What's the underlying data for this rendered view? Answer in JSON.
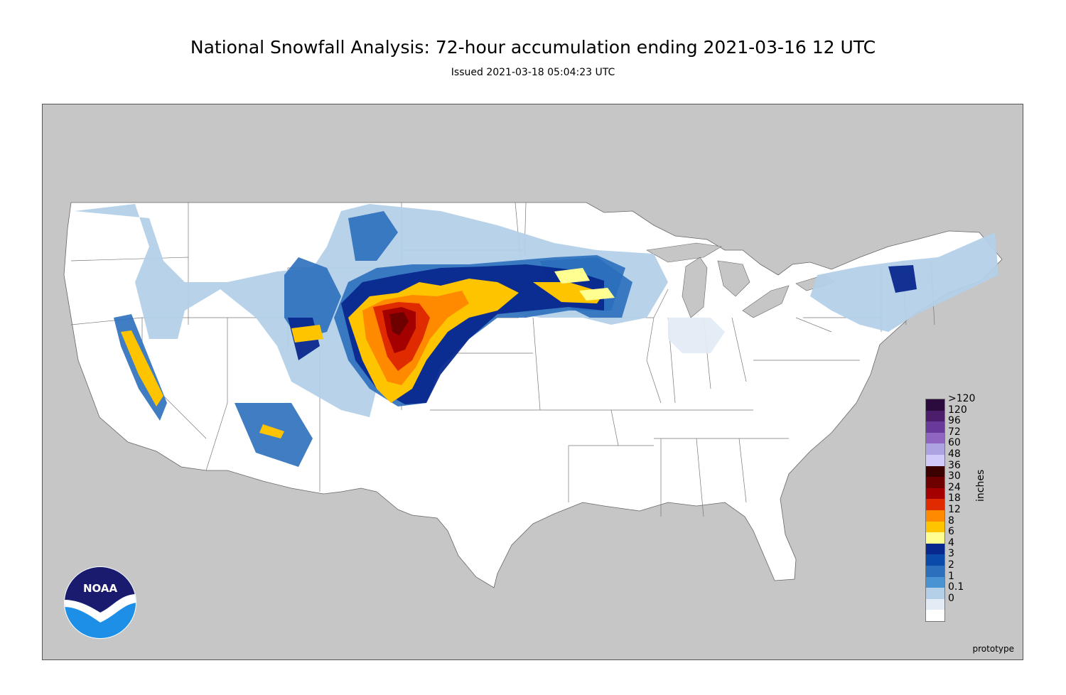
{
  "title": "National Snowfall Analysis: 72-hour accumulation ending 2021-03-16 12 UTC",
  "subtitle": "Issued 2021-03-18 05:04:23 UTC",
  "map": {
    "region": "Contiguous United States",
    "ocean_land_outside_color": "#c6c6c6",
    "us_land_color": "#ffffff",
    "border_color": "#555555",
    "watermark": "prototype"
  },
  "legend": {
    "unit": "inches",
    "bins": [
      {
        "label": ">120",
        "color": "#2b0a3d"
      },
      {
        "label": "120",
        "color": "#4c1d6b"
      },
      {
        "label": "96",
        "color": "#6a3a9a"
      },
      {
        "label": "72",
        "color": "#8e66c2"
      },
      {
        "label": "60",
        "color": "#ada3e3"
      },
      {
        "label": "48",
        "color": "#cfcaf9"
      },
      {
        "label": "36",
        "color": "#3b0000"
      },
      {
        "label": "30",
        "color": "#6e0000"
      },
      {
        "label": "24",
        "color": "#a50000"
      },
      {
        "label": "18",
        "color": "#e02a00"
      },
      {
        "label": "12",
        "color": "#ff8a00"
      },
      {
        "label": "8",
        "color": "#ffc400"
      },
      {
        "label": "6",
        "color": "#ffff91"
      },
      {
        "label": "4",
        "color": "#08288e"
      },
      {
        "label": "3",
        "color": "#0a4aa8"
      },
      {
        "label": "2",
        "color": "#2b6fbd"
      },
      {
        "label": "1",
        "color": "#4a93d2"
      },
      {
        "label": "0.1",
        "color": "#b3d0e8"
      },
      {
        "label": "0",
        "color": "#e3ecf5"
      },
      {
        "label": "",
        "color": "#ffffff"
      }
    ]
  },
  "logo": {
    "text": "NOAA",
    "top_color": "#1a1a6e",
    "bottom_color": "#1e8fe6"
  }
}
